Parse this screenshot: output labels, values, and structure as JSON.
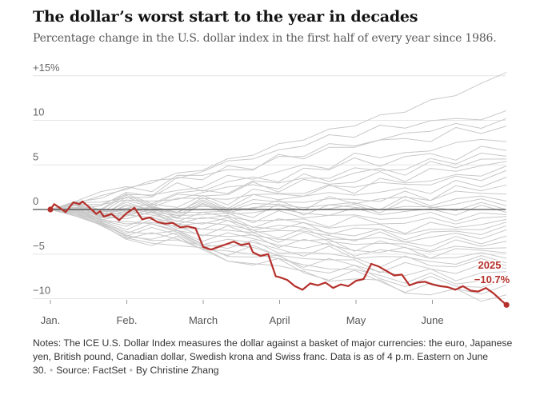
{
  "chart_data": {
    "type": "line",
    "title": "The dollar’s worst start to the year in decades",
    "subtitle": "Percentage change in the U.S. dollar index in the first half of every year since 1986.",
    "xlabel": "",
    "ylabel": "",
    "x_ticks": [
      "Jan.",
      "Feb.",
      "March",
      "April",
      "May",
      "June"
    ],
    "y_ticks": [
      {
        "value": 15,
        "label": "+15%"
      },
      {
        "value": 10,
        "label": "10"
      },
      {
        "value": 5,
        "label": "5"
      },
      {
        "value": 0,
        "label": "0"
      },
      {
        "value": -5,
        "label": "−5"
      },
      {
        "value": -10,
        "label": "−10"
      }
    ],
    "ylim": [
      -11,
      15
    ],
    "grid": true,
    "highlight": {
      "year": "2025",
      "final_change_label": "−10.7%",
      "final_value": -10.7,
      "color": "#b5302b",
      "x": [
        0,
        0.05,
        0.12,
        0.2,
        0.3,
        0.38,
        0.42,
        0.5,
        0.6,
        0.65,
        0.7,
        0.8,
        0.9,
        1.0,
        1.1,
        1.2,
        1.3,
        1.4,
        1.5,
        1.6,
        1.7,
        1.8,
        1.9,
        2.0,
        2.1,
        2.2,
        2.3,
        2.4,
        2.5,
        2.6,
        2.65,
        2.75,
        2.85,
        2.95,
        3.0,
        3.1,
        3.2,
        3.3,
        3.4,
        3.5,
        3.6,
        3.7,
        3.8,
        3.9,
        4.0,
        4.1,
        4.2,
        4.3,
        4.4,
        4.5,
        4.6,
        4.7,
        4.8,
        4.9,
        5.0,
        5.1,
        5.2,
        5.3,
        5.4,
        5.5,
        5.6,
        5.7,
        5.8,
        5.9,
        5.97
      ],
      "values": [
        0.0,
        0.6,
        0.2,
        -0.3,
        0.8,
        0.6,
        0.9,
        0.3,
        -0.5,
        -0.2,
        -0.8,
        -0.5,
        -1.2,
        -0.4,
        0.2,
        -1.1,
        -0.9,
        -1.4,
        -1.6,
        -1.5,
        -2.0,
        -1.9,
        -2.1,
        -4.2,
        -4.5,
        -4.2,
        -3.9,
        -3.6,
        -4.0,
        -3.8,
        -4.8,
        -5.2,
        -5.0,
        -7.5,
        -7.6,
        -7.9,
        -8.6,
        -9.0,
        -8.3,
        -8.5,
        -8.2,
        -8.8,
        -8.4,
        -8.6,
        -8.0,
        -7.8,
        -6.1,
        -6.4,
        -6.9,
        -7.4,
        -7.3,
        -8.5,
        -8.2,
        -8.1,
        -8.4,
        -8.6,
        -8.7,
        -9.0,
        -8.6,
        -9.1,
        -9.2,
        -8.8,
        -9.4,
        -10.2,
        -10.7
      ]
    },
    "background_series": [
      {
        "values": [
          0,
          0.8,
          1.4,
          2.3,
          3.1,
          4.0,
          4.6,
          5.5,
          6.3,
          7.2,
          8.0,
          8.8,
          9.6,
          10.3,
          11.2,
          12.0,
          13.0,
          14.0,
          15.3
        ]
      },
      {
        "values": [
          0,
          0.5,
          1.6,
          2.0,
          3.3,
          3.0,
          4.5,
          5.1,
          6.0,
          6.2,
          7.5,
          7.9,
          8.6,
          9.0,
          9.5,
          9.8,
          10.1,
          10.4,
          10.6
        ]
      },
      {
        "values": [
          0,
          -0.4,
          0.8,
          1.5,
          2.0,
          3.2,
          3.8,
          4.4,
          5.0,
          5.5,
          6.4,
          7.0,
          7.3,
          7.8,
          8.5,
          9.0,
          9.2,
          9.6,
          9.8
        ]
      },
      {
        "values": [
          0,
          1.0,
          1.9,
          2.6,
          2.4,
          3.5,
          4.2,
          4.0,
          4.9,
          5.7,
          6.0,
          6.7,
          7.0,
          7.8,
          7.5,
          8.1,
          8.7,
          8.9,
          9.2
        ]
      },
      {
        "values": [
          0,
          0.3,
          0.9,
          1.2,
          2.1,
          1.8,
          2.9,
          3.5,
          3.2,
          4.3,
          4.8,
          5.0,
          5.9,
          6.3,
          6.1,
          6.8,
          7.4,
          7.7,
          8.0
        ]
      },
      {
        "values": [
          0,
          0.7,
          1.1,
          0.8,
          1.9,
          2.5,
          2.2,
          3.0,
          3.7,
          3.5,
          4.2,
          4.9,
          5.3,
          5.0,
          5.8,
          6.2,
          6.0,
          6.6,
          7.1
        ]
      },
      {
        "values": [
          0,
          -0.2,
          0.5,
          1.3,
          1.0,
          1.6,
          2.4,
          2.1,
          2.9,
          3.4,
          3.1,
          3.9,
          4.4,
          4.1,
          4.8,
          5.3,
          5.6,
          5.9,
          6.2
        ]
      },
      {
        "values": [
          0,
          0.4,
          -0.3,
          0.6,
          1.4,
          1.1,
          1.9,
          2.6,
          2.3,
          2.8,
          3.5,
          3.3,
          4.0,
          4.6,
          4.3,
          4.9,
          5.1,
          5.4,
          5.6
        ]
      },
      {
        "values": [
          0,
          0.9,
          0.4,
          1.1,
          0.7,
          1.5,
          1.2,
          2.0,
          2.7,
          2.4,
          3.0,
          2.7,
          3.3,
          3.9,
          3.6,
          4.2,
          4.5,
          4.9,
          5.1
        ]
      },
      {
        "values": [
          0,
          -0.5,
          0.2,
          -0.1,
          0.9,
          0.5,
          1.3,
          1.0,
          1.8,
          2.2,
          1.9,
          2.6,
          2.3,
          3.0,
          3.4,
          3.2,
          3.8,
          4.1,
          4.4
        ]
      },
      {
        "values": [
          0,
          0.2,
          0.9,
          0.6,
          0.3,
          1.2,
          0.8,
          1.6,
          1.3,
          2.1,
          1.7,
          2.4,
          2.9,
          2.6,
          3.2,
          2.9,
          3.5,
          3.7,
          3.9
        ]
      },
      {
        "values": [
          0,
          0.6,
          0.1,
          0.9,
          0.4,
          0.0,
          0.9,
          0.5,
          1.3,
          0.9,
          1.7,
          1.4,
          2.1,
          1.8,
          2.5,
          2.2,
          2.8,
          3.0,
          3.3
        ]
      },
      {
        "values": [
          0,
          -0.3,
          0.3,
          -0.4,
          0.5,
          0.1,
          0.6,
          0.2,
          0.9,
          0.5,
          1.2,
          0.8,
          1.5,
          1.1,
          1.8,
          1.5,
          2.2,
          2.4,
          2.7
        ]
      },
      {
        "values": [
          0,
          0.1,
          -0.5,
          0.2,
          -0.3,
          0.4,
          -0.1,
          0.6,
          0.2,
          0.8,
          0.4,
          1.0,
          0.6,
          1.3,
          0.9,
          1.5,
          1.7,
          1.9,
          2.0
        ]
      },
      {
        "values": [
          0,
          0.5,
          0.0,
          -0.5,
          0.3,
          -0.2,
          0.4,
          0.0,
          0.6,
          0.1,
          0.7,
          0.3,
          0.9,
          0.4,
          1.0,
          0.7,
          1.1,
          1.3,
          1.4
        ]
      },
      {
        "values": [
          0,
          -0.6,
          -0.1,
          -0.7,
          0.0,
          -0.4,
          0.2,
          -0.3,
          0.3,
          -0.1,
          0.4,
          0.0,
          0.5,
          0.1,
          0.6,
          0.3,
          0.7,
          0.8,
          0.9
        ]
      },
      {
        "values": [
          0,
          0.3,
          -0.2,
          0.4,
          -0.4,
          0.1,
          -0.6,
          0.0,
          -0.5,
          0.2,
          -0.3,
          0.3,
          -0.1,
          0.4,
          0.0,
          0.5,
          0.2,
          0.3,
          0.4
        ]
      },
      {
        "values": [
          0,
          -0.2,
          0.4,
          -0.3,
          0.2,
          -0.5,
          0.1,
          -0.6,
          -0.1,
          -0.4,
          0.0,
          -0.5,
          -0.2,
          -0.1,
          -0.4,
          0.1,
          -0.2,
          0.0,
          -0.1
        ]
      },
      {
        "values": [
          0,
          0.2,
          -0.4,
          0.1,
          -0.6,
          -0.2,
          -0.8,
          -0.4,
          -1.0,
          -0.6,
          -0.9,
          -0.5,
          -1.1,
          -0.7,
          -0.9,
          -0.6,
          -0.8,
          -0.7,
          -0.6
        ]
      },
      {
        "values": [
          0,
          -0.4,
          0.1,
          -0.6,
          -0.3,
          -0.9,
          -0.6,
          -1.2,
          -0.8,
          -1.4,
          -1.1,
          -1.5,
          -1.2,
          -1.6,
          -1.3,
          -1.4,
          -1.2,
          -1.1,
          -1.0
        ]
      },
      {
        "values": [
          0,
          0.3,
          -0.3,
          -0.1,
          -0.8,
          -0.5,
          -1.1,
          -0.9,
          -1.6,
          -1.3,
          -1.9,
          -1.6,
          -2.0,
          -1.7,
          -2.2,
          -1.9,
          -1.8,
          -1.6,
          -1.5
        ]
      },
      {
        "values": [
          0,
          -0.5,
          -0.2,
          -0.9,
          -0.6,
          -1.3,
          -1.0,
          -1.7,
          -1.5,
          -2.1,
          -1.8,
          -2.4,
          -2.2,
          -2.6,
          -2.3,
          -2.5,
          -2.2,
          -2.0,
          -1.9
        ]
      },
      {
        "values": [
          0,
          0.1,
          -0.6,
          -0.3,
          -1.1,
          -0.8,
          -1.5,
          -1.3,
          -2.0,
          -1.8,
          -2.5,
          -2.2,
          -2.8,
          -2.6,
          -3.0,
          -2.7,
          -2.6,
          -2.4,
          -2.3
        ]
      },
      {
        "values": [
          0,
          -0.3,
          -0.9,
          -0.6,
          -1.4,
          -1.2,
          -1.9,
          -1.7,
          -2.4,
          -2.2,
          -2.9,
          -2.6,
          -3.2,
          -3.0,
          -3.4,
          -3.1,
          -3.0,
          -2.8,
          -2.7
        ]
      },
      {
        "values": [
          0,
          0.4,
          -0.4,
          -0.9,
          -0.7,
          -1.6,
          -1.4,
          -2.2,
          -2.0,
          -2.8,
          -2.6,
          -3.3,
          -3.1,
          -3.6,
          -3.4,
          -3.8,
          -3.5,
          -3.4,
          -3.2
        ]
      },
      {
        "values": [
          0,
          -0.6,
          -1.0,
          -1.5,
          -1.3,
          -2.1,
          -1.9,
          -2.7,
          -2.5,
          -3.2,
          -3.0,
          -3.8,
          -3.5,
          -4.1,
          -3.8,
          -4.2,
          -3.9,
          -3.8,
          -3.6
        ]
      },
      {
        "values": [
          0,
          -0.2,
          -0.8,
          -1.3,
          -1.9,
          -1.7,
          -2.5,
          -2.3,
          -3.1,
          -2.9,
          -3.7,
          -3.4,
          -4.2,
          -3.9,
          -4.6,
          -4.3,
          -4.5,
          -4.2,
          -4.1
        ]
      },
      {
        "values": [
          0,
          -0.7,
          -1.3,
          -1.1,
          -2.0,
          -2.6,
          -2.4,
          -3.2,
          -3.0,
          -3.8,
          -3.6,
          -4.4,
          -4.1,
          -4.8,
          -4.5,
          -5.0,
          -4.7,
          -4.6,
          -4.5
        ]
      },
      {
        "values": [
          0,
          -0.4,
          -1.1,
          -1.8,
          -1.6,
          -2.5,
          -3.1,
          -2.9,
          -3.7,
          -3.5,
          -4.3,
          -4.1,
          -4.9,
          -4.6,
          -5.3,
          -5.0,
          -5.4,
          -5.1,
          -5.0
        ]
      },
      {
        "values": [
          0,
          -0.9,
          -1.5,
          -2.2,
          -2.0,
          -2.9,
          -3.6,
          -3.4,
          -4.2,
          -4.0,
          -4.9,
          -4.6,
          -5.4,
          -5.1,
          -5.8,
          -5.5,
          -5.9,
          -5.6,
          -5.5
        ]
      },
      {
        "values": [
          0,
          -0.5,
          -1.4,
          -2.0,
          -2.8,
          -2.6,
          -3.5,
          -4.1,
          -3.9,
          -4.8,
          -4.6,
          -5.4,
          -5.2,
          -6.0,
          -5.7,
          -6.4,
          -6.1,
          -6.0,
          -5.9
        ]
      },
      {
        "values": [
          0,
          -1.0,
          -1.8,
          -2.5,
          -2.3,
          -3.3,
          -4.0,
          -3.8,
          -4.7,
          -5.3,
          -5.1,
          -5.9,
          -5.7,
          -6.6,
          -6.3,
          -7.0,
          -6.7,
          -6.6,
          -6.4
        ]
      },
      {
        "values": [
          0,
          -0.8,
          -1.6,
          -2.6,
          -3.2,
          -3.0,
          -4.0,
          -4.7,
          -4.5,
          -5.4,
          -6.0,
          -5.8,
          -6.7,
          -6.5,
          -7.3,
          -7.0,
          -7.6,
          -7.3,
          -7.1
        ]
      },
      {
        "values": [
          0,
          -1.2,
          -2.0,
          -2.9,
          -2.7,
          -3.8,
          -4.5,
          -4.3,
          -5.3,
          -5.9,
          -5.7,
          -6.6,
          -7.2,
          -7.0,
          -7.9,
          -7.6,
          -8.2,
          -7.9,
          -7.8
        ]
      },
      {
        "values": [
          0,
          -0.6,
          -1.7,
          -2.4,
          -3.3,
          -3.9,
          -3.7,
          -4.8,
          -5.5,
          -5.3,
          -6.3,
          -6.9,
          -6.7,
          -7.6,
          -8.2,
          -8.0,
          -8.7,
          -8.4,
          -8.3
        ]
      },
      {
        "values": [
          0,
          -1.1,
          -1.9,
          -3.0,
          -3.7,
          -3.5,
          -4.6,
          -5.3,
          -6.1,
          -5.9,
          -6.9,
          -7.5,
          -7.3,
          -8.2,
          -8.8,
          -8.6,
          -9.2,
          -9.0,
          -8.9
        ]
      },
      {
        "values": [
          0,
          -0.9,
          -2.1,
          -2.8,
          -3.5,
          -4.4,
          -4.2,
          -5.3,
          -6.0,
          -6.8,
          -6.6,
          -7.6,
          -8.1,
          -7.9,
          -8.9,
          -9.5,
          -9.2,
          -9.9,
          -9.7
        ]
      }
    ]
  },
  "notes": {
    "text": "Notes: The ICE U.S. Dollar Index measures the dollar against a basket of major currencies: the euro, Japanese yen, British pound, Canadian dollar, Swedish krona and Swiss franc. Data is as of 4 p.m. Eastern on June 30.",
    "source": "Source: FactSet",
    "byline": "By Christine Zhang"
  }
}
